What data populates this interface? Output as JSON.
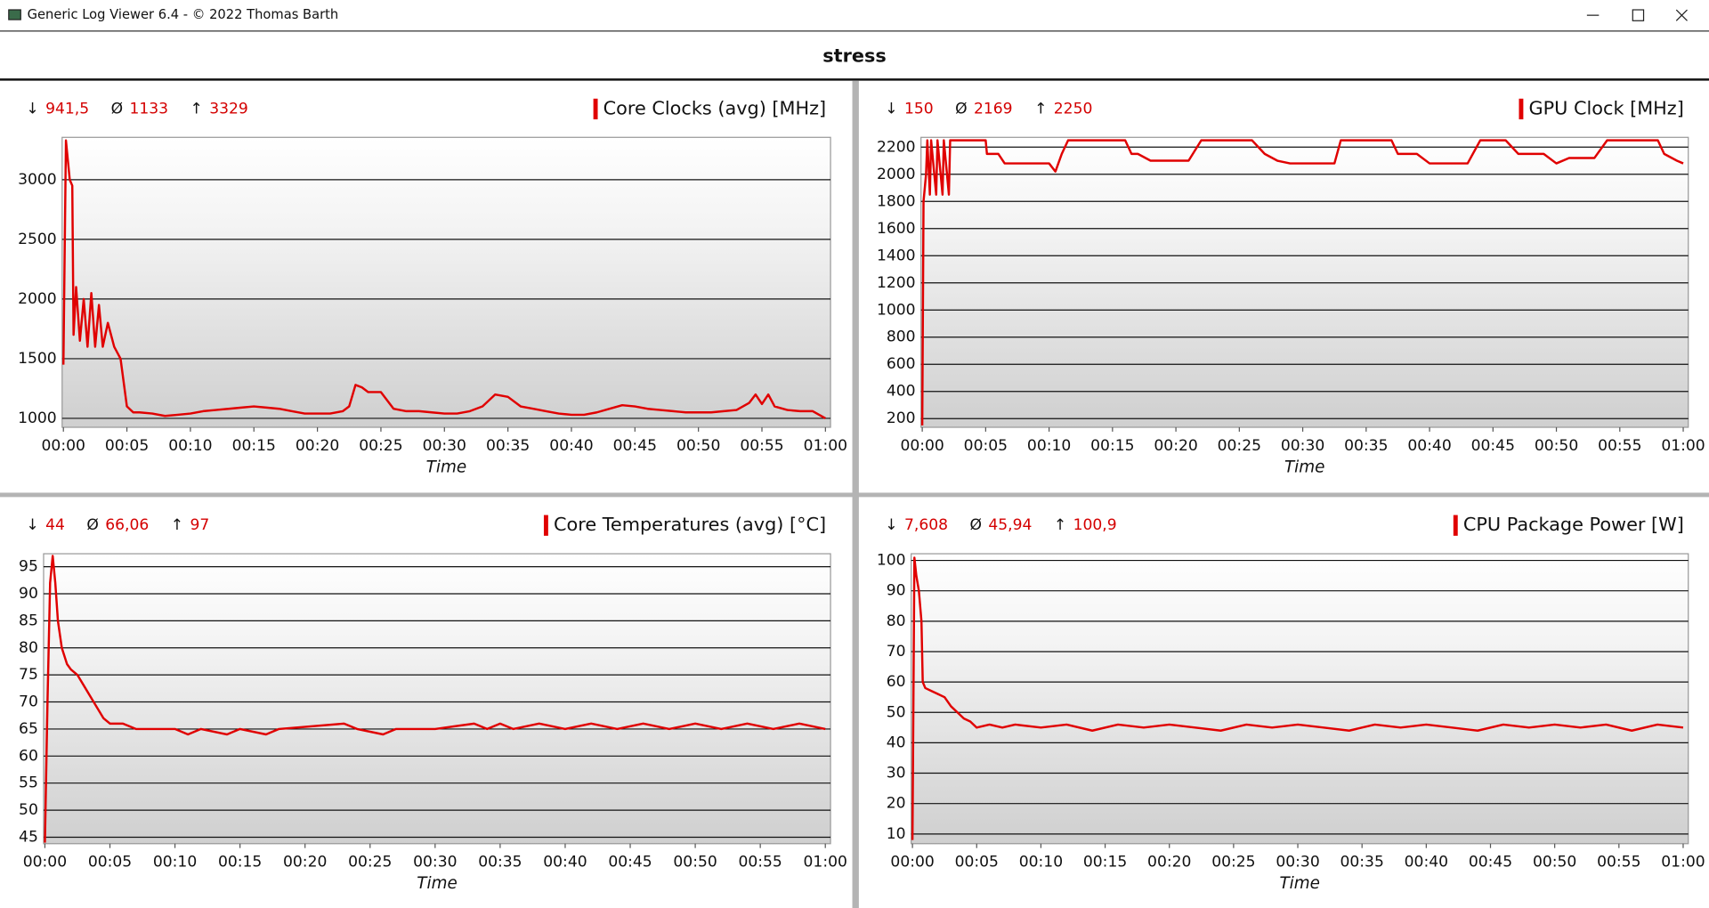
{
  "window": {
    "title": "Generic Log Viewer 6.4 - © 2022 Thomas Barth"
  },
  "header": {
    "title": "stress"
  },
  "chart_data": [
    {
      "type": "line",
      "stats": [
        {
          "symbol": "↓",
          "value": "941,5"
        },
        {
          "symbol": "Ø",
          "value": "1133"
        },
        {
          "symbol": "↑",
          "value": "3329"
        }
      ],
      "x_label": "Time",
      "x": [
        0,
        0.2,
        0.5,
        0.7,
        0.8,
        1,
        1.3,
        1.6,
        1.9,
        2.2,
        2.5,
        2.8,
        3.1,
        3.5,
        4,
        4.5,
        5,
        5.5,
        6,
        7,
        8,
        9,
        10,
        11,
        12,
        13,
        14,
        15,
        16,
        17,
        18,
        19,
        20,
        21,
        22,
        22.5,
        23,
        23.5,
        24,
        25,
        26,
        27,
        28,
        29,
        30,
        31,
        32,
        33,
        34,
        35,
        36,
        37,
        38,
        39,
        40,
        41,
        42,
        43,
        44,
        45,
        46,
        47,
        48,
        49,
        50,
        51,
        52,
        53,
        54,
        54.5,
        55,
        55.5,
        56,
        57,
        58,
        59,
        60
      ],
      "series": [
        {
          "name": "Core Clocks (avg) [MHz]",
          "color": "#e00000",
          "values": [
            1450,
            3329,
            3000,
            2950,
            1700,
            2100,
            1650,
            2000,
            1600,
            2050,
            1600,
            1950,
            1600,
            1800,
            1600,
            1500,
            1100,
            1050,
            1050,
            1040,
            1020,
            1030,
            1040,
            1060,
            1070,
            1080,
            1090,
            1100,
            1090,
            1080,
            1060,
            1040,
            1040,
            1040,
            1060,
            1100,
            1280,
            1260,
            1220,
            1220,
            1080,
            1060,
            1060,
            1050,
            1040,
            1040,
            1060,
            1100,
            1200,
            1180,
            1100,
            1080,
            1060,
            1040,
            1030,
            1030,
            1050,
            1080,
            1110,
            1100,
            1080,
            1070,
            1060,
            1050,
            1050,
            1050,
            1060,
            1070,
            1130,
            1200,
            1120,
            1200,
            1100,
            1070,
            1060,
            1060,
            1000
          ]
        }
      ],
      "xlim": [
        -0.1,
        60.4
      ],
      "ylim": [
        925,
        3355
      ],
      "xticks": [
        {
          "value": 0,
          "label": "00:00"
        },
        {
          "value": 5,
          "label": "00:05"
        },
        {
          "value": 10,
          "label": "00:10"
        },
        {
          "value": 15,
          "label": "00:15"
        },
        {
          "value": 20,
          "label": "00:20"
        },
        {
          "value": 25,
          "label": "00:25"
        },
        {
          "value": 30,
          "label": "00:30"
        },
        {
          "value": 35,
          "label": "00:35"
        },
        {
          "value": 40,
          "label": "00:40"
        },
        {
          "value": 45,
          "label": "00:45"
        },
        {
          "value": 50,
          "label": "00:50"
        },
        {
          "value": 55,
          "label": "00:55"
        },
        {
          "value": 60,
          "label": "01:00"
        }
      ],
      "yticks": [
        1000,
        1500,
        2000,
        2500,
        3000
      ],
      "grid": true
    },
    {
      "type": "line",
      "stats": [
        {
          "symbol": "↓",
          "value": "150"
        },
        {
          "symbol": "Ø",
          "value": "2169"
        },
        {
          "symbol": "↑",
          "value": "2250"
        }
      ],
      "x_label": "Time",
      "x": [
        0,
        0.1,
        0.3,
        0.4,
        0.6,
        0.7,
        1.1,
        1.2,
        1.6,
        1.7,
        2.1,
        2.2,
        5,
        5.1,
        6,
        6.5,
        8,
        9,
        10,
        10.5,
        11,
        11.5,
        13,
        16,
        16.5,
        17,
        18,
        21,
        22,
        26,
        27,
        28,
        29,
        31,
        32.5,
        33,
        37,
        37.5,
        39,
        40,
        43,
        44,
        46,
        47,
        49,
        50,
        51,
        53,
        54,
        58,
        58.5,
        59.5,
        60
      ],
      "series": [
        {
          "name": "GPU Clock [MHz]",
          "color": "#e00000",
          "values": [
            150,
            1800,
            2000,
            2250,
            1850,
            2250,
            1850,
            2250,
            1850,
            2250,
            1850,
            2250,
            2250,
            2150,
            2150,
            2080,
            2080,
            2080,
            2080,
            2020,
            2150,
            2250,
            2250,
            2250,
            2150,
            2150,
            2100,
            2100,
            2250,
            2250,
            2150,
            2100,
            2080,
            2080,
            2080,
            2250,
            2250,
            2150,
            2150,
            2080,
            2080,
            2250,
            2250,
            2150,
            2150,
            2080,
            2120,
            2120,
            2250,
            2250,
            2150,
            2100,
            2080
          ]
        }
      ],
      "xlim": [
        -0.1,
        60.4
      ],
      "ylim": [
        136,
        2272
      ],
      "xticks": [
        {
          "value": 0,
          "label": "00:00"
        },
        {
          "value": 5,
          "label": "00:05"
        },
        {
          "value": 10,
          "label": "00:10"
        },
        {
          "value": 15,
          "label": "00:15"
        },
        {
          "value": 20,
          "label": "00:20"
        },
        {
          "value": 25,
          "label": "00:25"
        },
        {
          "value": 30,
          "label": "00:30"
        },
        {
          "value": 35,
          "label": "00:35"
        },
        {
          "value": 40,
          "label": "00:40"
        },
        {
          "value": 45,
          "label": "00:45"
        },
        {
          "value": 50,
          "label": "00:50"
        },
        {
          "value": 55,
          "label": "00:55"
        },
        {
          "value": 60,
          "label": "01:00"
        }
      ],
      "yticks": [
        200,
        400,
        600,
        800,
        1000,
        1200,
        1400,
        1600,
        1800,
        2000,
        2200
      ],
      "grid": true
    },
    {
      "type": "line",
      "stats": [
        {
          "symbol": "↓",
          "value": "44"
        },
        {
          "symbol": "Ø",
          "value": "66,06"
        },
        {
          "symbol": "↑",
          "value": "97"
        }
      ],
      "x_label": "Time",
      "x": [
        0,
        0.2,
        0.4,
        0.6,
        0.8,
        1,
        1.3,
        1.7,
        2,
        2.5,
        3,
        3.5,
        4,
        4.5,
        5,
        6,
        7,
        8,
        10,
        11,
        12,
        14,
        15,
        17,
        18,
        23,
        24,
        26,
        27,
        30,
        33,
        34,
        35,
        36,
        38,
        40,
        42,
        44,
        46,
        48,
        50,
        52,
        54,
        56,
        58,
        60
      ],
      "series": [
        {
          "name": "Core Temperatures (avg) [°C]",
          "color": "#e00000",
          "values": [
            44,
            70,
            92,
            97,
            92,
            85,
            80,
            77,
            76,
            75,
            73,
            71,
            69,
            67,
            66,
            66,
            65,
            65,
            65,
            64,
            65,
            64,
            65,
            64,
            65,
            66,
            65,
            64,
            65,
            65,
            66,
            65,
            66,
            65,
            66,
            65,
            66,
            65,
            66,
            65,
            66,
            65,
            66,
            65,
            66,
            65
          ]
        }
      ],
      "xlim": [
        -0.1,
        60.4
      ],
      "ylim": [
        43.8,
        97.4
      ],
      "xticks": [
        {
          "value": 0,
          "label": "00:00"
        },
        {
          "value": 5,
          "label": "00:05"
        },
        {
          "value": 10,
          "label": "00:10"
        },
        {
          "value": 15,
          "label": "00:15"
        },
        {
          "value": 20,
          "label": "00:20"
        },
        {
          "value": 25,
          "label": "00:25"
        },
        {
          "value": 30,
          "label": "00:30"
        },
        {
          "value": 35,
          "label": "00:35"
        },
        {
          "value": 40,
          "label": "00:40"
        },
        {
          "value": 45,
          "label": "00:45"
        },
        {
          "value": 50,
          "label": "00:50"
        },
        {
          "value": 55,
          "label": "00:55"
        },
        {
          "value": 60,
          "label": "01:00"
        }
      ],
      "yticks": [
        45,
        50,
        55,
        60,
        65,
        70,
        75,
        80,
        85,
        90,
        95
      ],
      "grid": true
    },
    {
      "type": "line",
      "stats": [
        {
          "symbol": "↓",
          "value": "7,608"
        },
        {
          "symbol": "Ø",
          "value": "45,94"
        },
        {
          "symbol": "↑",
          "value": "100,9"
        }
      ],
      "x_label": "Time",
      "x": [
        0,
        0.15,
        0.3,
        0.5,
        0.7,
        0.8,
        1,
        1.5,
        2,
        2.5,
        3,
        3.5,
        4,
        4.5,
        5,
        6,
        7,
        8,
        10,
        12,
        14,
        16,
        18,
        20,
        22,
        24,
        26,
        28,
        30,
        32,
        34,
        36,
        38,
        40,
        42,
        44,
        46,
        48,
        50,
        52,
        54,
        56,
        58,
        60
      ],
      "series": [
        {
          "name": "CPU Package Power [W]",
          "color": "#e00000",
          "values": [
            8,
            100.9,
            95,
            90,
            80,
            60,
            58,
            57,
            56,
            55,
            52,
            50,
            48,
            47,
            45,
            46,
            45,
            46,
            45,
            46,
            44,
            46,
            45,
            46,
            45,
            44,
            46,
            45,
            46,
            45,
            44,
            46,
            45,
            46,
            45,
            44,
            46,
            45,
            46,
            45,
            46,
            44,
            46,
            45
          ]
        }
      ],
      "xlim": [
        -0.1,
        60.4
      ],
      "ylim": [
        6.8,
        102.2
      ],
      "xticks": [
        {
          "value": 0,
          "label": "00:00"
        },
        {
          "value": 5,
          "label": "00:05"
        },
        {
          "value": 10,
          "label": "00:10"
        },
        {
          "value": 15,
          "label": "00:15"
        },
        {
          "value": 20,
          "label": "00:20"
        },
        {
          "value": 25,
          "label": "00:25"
        },
        {
          "value": 30,
          "label": "00:30"
        },
        {
          "value": 35,
          "label": "00:35"
        },
        {
          "value": 40,
          "label": "00:40"
        },
        {
          "value": 45,
          "label": "00:45"
        },
        {
          "value": 50,
          "label": "00:50"
        },
        {
          "value": 55,
          "label": "00:55"
        },
        {
          "value": 60,
          "label": "01:00"
        }
      ],
      "yticks": [
        10,
        20,
        30,
        40,
        50,
        60,
        70,
        80,
        90,
        100
      ],
      "grid": true
    }
  ]
}
